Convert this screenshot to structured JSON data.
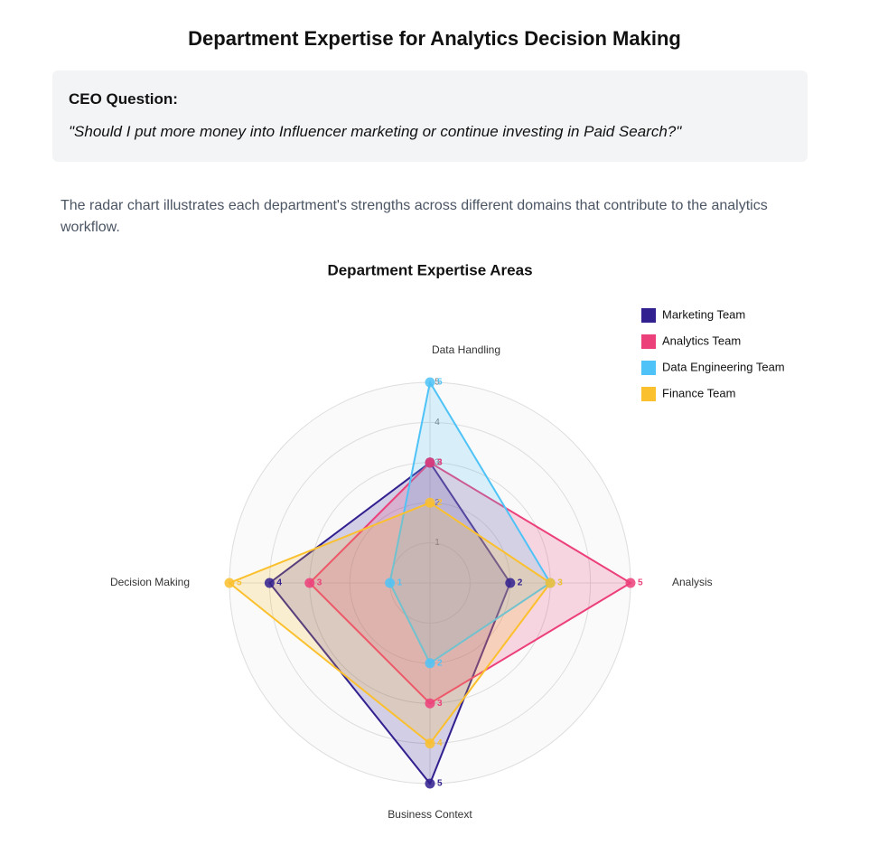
{
  "header": {
    "title": "Department Expertise for Analytics Decision Making"
  },
  "question_box": {
    "label": "CEO Question:",
    "question": "\"Should I put more money into Influencer marketing or continue investing in Paid Search?\""
  },
  "description": "The radar chart illustrates each department's strengths across different domains that contribute to the analytics workflow.",
  "chart_data": {
    "type": "radar",
    "title": "Department Expertise Areas",
    "categories": [
      "Data Handling",
      "Analysis",
      "Business Context",
      "Decision Making"
    ],
    "series": [
      {
        "name": "Marketing Team",
        "color": "#31208f",
        "values": [
          3,
          2,
          5,
          4
        ]
      },
      {
        "name": "Analytics Team",
        "color": "#ec407a",
        "values": [
          3,
          5,
          3,
          3
        ]
      },
      {
        "name": "Data Engineering Team",
        "color": "#4fc3f7",
        "values": [
          5,
          3,
          2,
          1
        ]
      },
      {
        "name": "Finance Team",
        "color": "#fbc02d",
        "values": [
          2,
          3,
          4,
          5
        ]
      }
    ],
    "rlim": [
      0,
      5
    ],
    "rticks": [
      1,
      2,
      3,
      4,
      5
    ],
    "grid": true,
    "legend": "top-right"
  }
}
